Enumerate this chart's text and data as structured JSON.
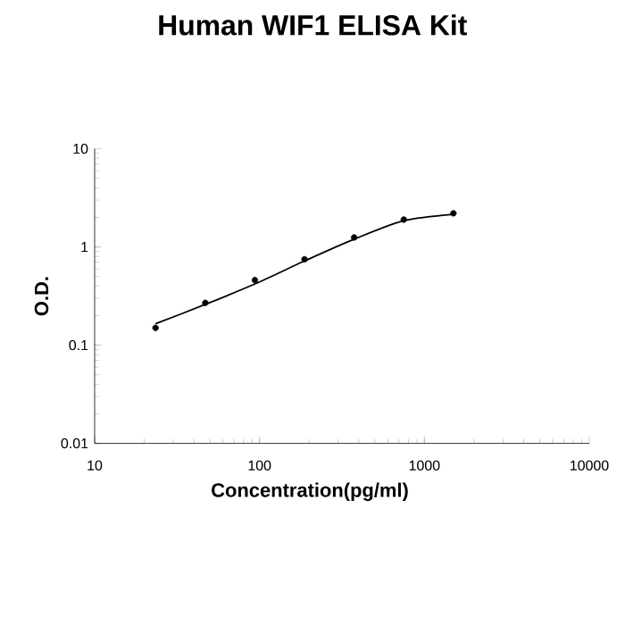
{
  "chart_data": {
    "type": "scatter",
    "title": "Human WIF1 ELISA Kit",
    "xlabel": "Concentration(pg/ml)",
    "ylabel": "O.D.",
    "log": "xy",
    "xlim": [
      10,
      10000
    ],
    "ylim": [
      0.01,
      10
    ],
    "xticks": [
      10,
      100,
      1000,
      10000
    ],
    "yticks": [
      0.01,
      0.1,
      1,
      10
    ],
    "series": [
      {
        "color": "#000000",
        "marker": "circle",
        "x": [
          23.4,
          46.9,
          93.75,
          187.5,
          375,
          750,
          1500
        ],
        "values": [
          0.15,
          0.27,
          0.46,
          0.75,
          1.25,
          1.9,
          2.2
        ]
      },
      {
        "type": "line",
        "color": "#000000",
        "marker": "none",
        "line_style": "solid",
        "x": [
          23.4,
          46.9,
          93.75,
          187.5,
          375,
          750,
          1500
        ],
        "values": [
          0.165,
          0.26,
          0.42,
          0.72,
          1.2,
          1.85,
          2.15
        ]
      }
    ]
  }
}
